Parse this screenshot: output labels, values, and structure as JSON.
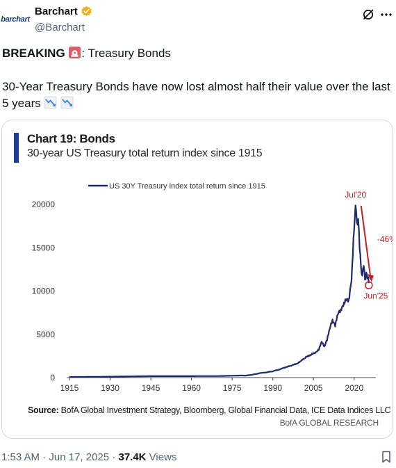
{
  "author": {
    "avatar_text": "barchart",
    "display_name": "Barchart",
    "handle": "@Barchart"
  },
  "tweet": {
    "headline_bold": "BREAKING",
    "headline_emoji": "rotating-light-emoji",
    "headline_rest": ": Treasury Bonds",
    "body_text": "30-Year Treasury Bonds have now lost almost half their value over the last 5 years",
    "body_emojis": [
      "chart-decreasing-emoji",
      "chart-decreasing-emoji"
    ]
  },
  "chart": {
    "title": "Chart 19: Bonds",
    "subtitle": "30-year US Treasury total return index since 1915",
    "source_label": "Source:",
    "source_text": " BofA Global Investment Strategy, Bloomberg, Global Financial Data, ICE Data Indices LLC",
    "branding": "BofA GLOBAL RESEARCH"
  },
  "chart_data": {
    "type": "line",
    "title": "Chart 19: Bonds",
    "subtitle": "30-year US Treasury total return index since 1915",
    "series": [
      {
        "name": "US 30Y Treasury index total return since 1915",
        "color": "#1f2a6b",
        "x": [
          1915,
          1920,
          1925,
          1930,
          1935,
          1940,
          1945,
          1950,
          1955,
          1960,
          1965,
          1970,
          1975,
          1978,
          1980,
          1982,
          1985,
          1988,
          1990,
          1993,
          1995,
          1997,
          1999,
          2000,
          2002,
          2004,
          2006,
          2007,
          2008,
          2009,
          2010,
          2011,
          2012,
          2013,
          2014,
          2015,
          2016,
          2017,
          2018,
          2019,
          2020.5,
          2021,
          2021.5,
          2022,
          2022.5,
          2023,
          2023.5,
          2024,
          2024.5,
          2025.4
        ],
        "values": [
          75,
          80,
          95,
          110,
          130,
          150,
          170,
          165,
          165,
          170,
          180,
          180,
          220,
          240,
          235,
          300,
          500,
          620,
          720,
          1000,
          1200,
          1400,
          1600,
          1800,
          2300,
          2600,
          2900,
          3200,
          4100,
          3500,
          4300,
          5600,
          6500,
          5900,
          7300,
          7600,
          8200,
          8900,
          8700,
          11000,
          20000,
          17400,
          18000,
          15000,
          12500,
          11500,
          13000,
          11000,
          11800,
          10900
        ]
      }
    ],
    "xticks": [
      "1915",
      "1930",
      "1945",
      "1960",
      "1975",
      "1990",
      "2005",
      "2020"
    ],
    "yticks": [
      "0",
      "5000",
      "10000",
      "15000",
      "20000"
    ],
    "xlim": [
      1915,
      2028
    ],
    "ylim": [
      0,
      20000
    ],
    "grid": false,
    "legend": "top-left",
    "annotations": {
      "peak": "Jul'20",
      "trough": "Jun'25",
      "drop": "-46%",
      "arrow_color": "#c0202a"
    }
  },
  "footer": {
    "time": "1:53 AM",
    "separator1": " · ",
    "date": "Jun 17, 2025",
    "separator2": " · ",
    "views_count": "37.4K",
    "views_label": " Views"
  },
  "colors": {
    "verified": "#e6b020",
    "accent_line": "#1f3b8f",
    "muted_text": "#536471"
  }
}
